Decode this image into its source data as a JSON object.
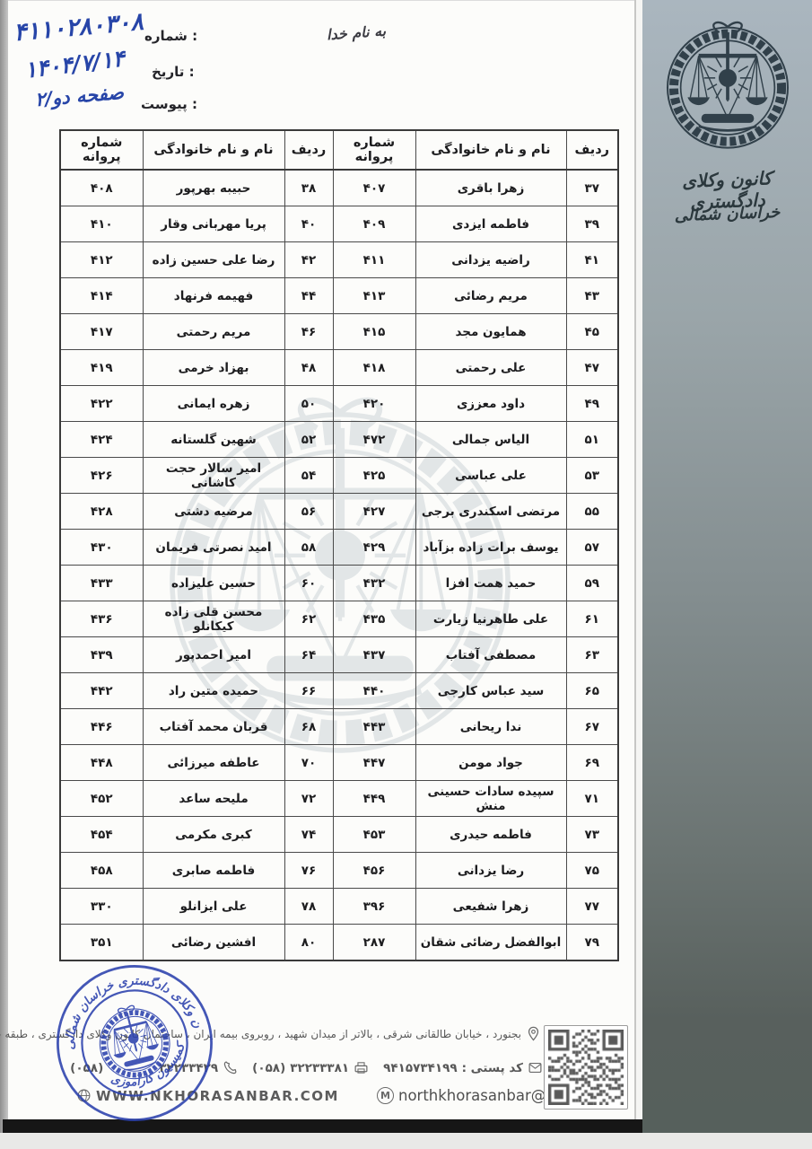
{
  "page": {
    "besmellah": "به نام خدا",
    "meta": {
      "number_label": "شماره :",
      "number_value": "۴۱۱۰۲۸۰۳۰۸",
      "date_label": "تاریخ :",
      "date_value": "۱۴۰۴/۷/۱۴",
      "attachment_label": "پیوست :",
      "attachment_value": "صفحه دو/۲"
    }
  },
  "sidebar": {
    "org_name": "کانون وکلای دادگستری",
    "region": "خراسان شمالی",
    "logo_icon": "scales-of-justice-wreath-icon"
  },
  "table": {
    "headers": [
      "ردیف",
      "نام و نام خانوادگی",
      "شماره پروانه",
      "ردیف",
      "نام و نام خانوادگی",
      "شماره پروانه"
    ],
    "rows": [
      [
        "۳۷",
        "زهرا باقری",
        "۴۰۷",
        "۳۸",
        "حبیبه بهرپور",
        "۴۰۸"
      ],
      [
        "۳۹",
        "فاطمه ایزدی",
        "۴۰۹",
        "۴۰",
        "پریا مهربانی وقار",
        "۴۱۰"
      ],
      [
        "۴۱",
        "راضیه یزدانی",
        "۴۱۱",
        "۴۲",
        "رضا علی حسین زاده",
        "۴۱۲"
      ],
      [
        "۴۳",
        "مریم رضائی",
        "۴۱۳",
        "۴۴",
        "فهیمه فرنهاد",
        "۴۱۴"
      ],
      [
        "۴۵",
        "همایون مجد",
        "۴۱۵",
        "۴۶",
        "مریم رحمتی",
        "۴۱۷"
      ],
      [
        "۴۷",
        "علی رحمتی",
        "۴۱۸",
        "۴۸",
        "بهزاد خرمی",
        "۴۱۹"
      ],
      [
        "۴۹",
        "داود معززی",
        "۴۲۰",
        "۵۰",
        "زهره ایمانی",
        "۴۲۲"
      ],
      [
        "۵۱",
        "الیاس جمالی",
        "۴۷۲",
        "۵۲",
        "شهین گلستانه",
        "۴۲۴"
      ],
      [
        "۵۳",
        "علی عباسی",
        "۴۲۵",
        "۵۴",
        "امیر سالار حجت کاشانی",
        "۴۲۶"
      ],
      [
        "۵۵",
        "مرتضی اسکندری برجی",
        "۴۲۷",
        "۵۶",
        "مرضیه دشتی",
        "۴۲۸"
      ],
      [
        "۵۷",
        "یوسف برات زاده بزآباد",
        "۴۲۹",
        "۵۸",
        "امید نصرتی فریمان",
        "۴۳۰"
      ],
      [
        "۵۹",
        "حمید همت افزا",
        "۴۳۲",
        "۶۰",
        "حسین علیزاده",
        "۴۳۳"
      ],
      [
        "۶۱",
        "علی طاهرنیا زیارت",
        "۴۳۵",
        "۶۲",
        "محسن قلی زاده کیکانلو",
        "۴۳۶"
      ],
      [
        "۶۳",
        "مصطفی آفتاب",
        "۴۳۷",
        "۶۴",
        "امیر احمدپور",
        "۴۳۹"
      ],
      [
        "۶۵",
        "سید عباس کارجی",
        "۴۴۰",
        "۶۶",
        "حمیده متین راد",
        "۴۴۲"
      ],
      [
        "۶۷",
        "ندا ریحانی",
        "۴۴۳",
        "۶۸",
        "قربان محمد آفتاب",
        "۴۴۶"
      ],
      [
        "۶۹",
        "جواد مومن",
        "۴۴۷",
        "۷۰",
        "عاطفه میرزائی",
        "۴۴۸"
      ],
      [
        "۷۱",
        "سپیده سادات حسینی منش",
        "۴۴۹",
        "۷۲",
        "ملیحه ساعد",
        "۴۵۲"
      ],
      [
        "۷۳",
        "فاطمه حیدری",
        "۴۵۳",
        "۷۴",
        "کبری مکرمی",
        "۴۵۴"
      ],
      [
        "۷۵",
        "رضا یزدانی",
        "۴۵۶",
        "۷۶",
        "فاطمه صابری",
        "۴۵۸"
      ],
      [
        "۷۷",
        "زهرا شفیعی",
        "۳۹۶",
        "۷۸",
        "علی ایزانلو",
        "۳۳۰"
      ],
      [
        "۷۹",
        "ابوالفضل رضائی شقان",
        "۲۸۷",
        "۸۰",
        "افشین رضائی",
        "۳۵۱"
      ]
    ]
  },
  "stamp": {
    "ring_text_top": "کانون وکلای دادگستری خراسان شمالی",
    "ring_text_bottom": "کمیسیون کارآموزی"
  },
  "footer": {
    "address": "بجنورد ، خیابان طالقانی شرقی ، بالاتر از میدان شهید ، روبروی بیمه ایران ، ساختمان کانون وکلای دادگستری ، طبقه چهارم",
    "postal_label": "کد پستی :",
    "postal_value": "۹۴۱۵۷۳۴۱۹۹",
    "fax_value": "۳۲۲۳۳۳۸۱",
    "fax_area": "(۰۵۸)",
    "phone_value": "۳۲۲۳۳۴۲۹",
    "phone_area": "(۰۵۸)",
    "website": "WWW.NKHORASANBAR.COM",
    "email": "northkhorasanbar@gmail.com",
    "icons": {
      "address": "location-pin-icon",
      "postal": "envelope-icon",
      "fax": "fax-machine-icon",
      "phone": "telephone-icon",
      "website": "globe-icon",
      "email": "gmail-m-icon",
      "qr": "qr-code"
    }
  },
  "colors": {
    "handwriting_blue": "#2745a8",
    "stamp_blue": "#2b41ad",
    "sidebar_top": "#aab6bf",
    "sidebar_bottom": "#56605c"
  }
}
